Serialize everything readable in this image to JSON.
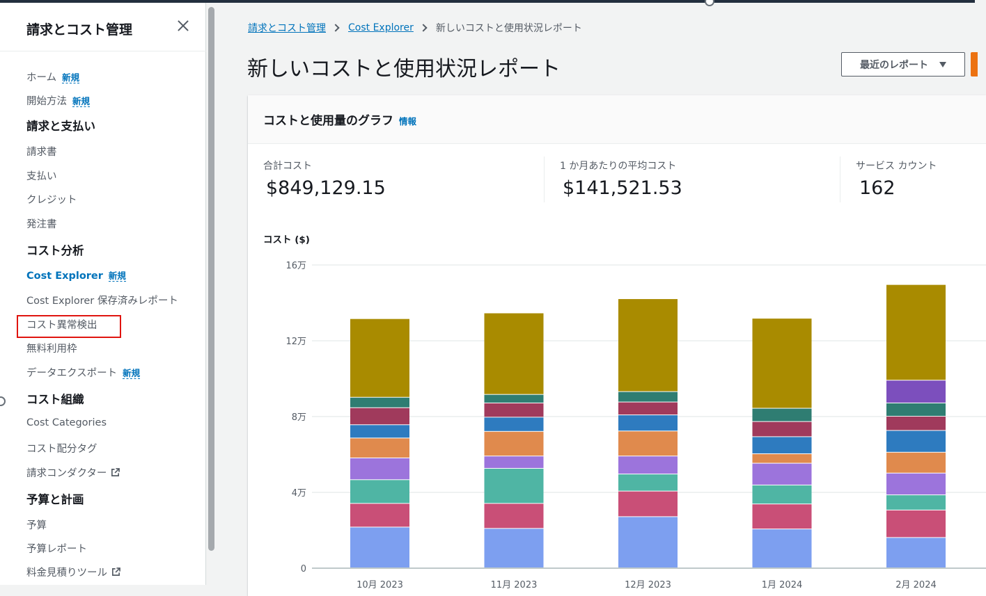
{
  "sidebar": {
    "title": "請求とコスト管理",
    "items": [
      {
        "label": "ホーム",
        "badge": "新規"
      },
      {
        "label": "開始方法",
        "badge": "新規"
      },
      {
        "label": "請求と支払い"
      },
      {
        "label": "請求書"
      },
      {
        "label": "支払い"
      },
      {
        "label": "クレジット"
      },
      {
        "label": "発注書"
      },
      {
        "label": "コスト分析"
      },
      {
        "label": "Cost Explorer",
        "badge": "新規"
      },
      {
        "label": "Cost Explorer 保存済みレポート"
      },
      {
        "label": "コスト異常検出"
      },
      {
        "label": "無料利用枠"
      },
      {
        "label": "データエクスポート",
        "badge": "新規"
      },
      {
        "label": "コスト組織"
      },
      {
        "label": "Cost Categories"
      },
      {
        "label": "コスト配分タグ"
      },
      {
        "label": "請求コンダクター"
      },
      {
        "label": "予算と計画"
      },
      {
        "label": "予算"
      },
      {
        "label": "予算レポート"
      },
      {
        "label": "料金見積りツール"
      }
    ]
  },
  "breadcrumb": {
    "items": [
      "請求とコスト管理",
      "Cost Explorer",
      "新しいコストと使用状況レポート"
    ]
  },
  "page": {
    "title": "新しいコストと使用状況レポート",
    "recent_reports_label": "最近のレポート"
  },
  "card": {
    "title": "コストと使用量のグラフ",
    "info_label": "情報",
    "metrics": [
      {
        "label": "合計コスト",
        "value": "$849,129.15"
      },
      {
        "label": "1 か月あたりの平均コスト",
        "value": "$141,521.53"
      },
      {
        "label": "サービス カウント",
        "value": "162"
      }
    ],
    "chart_ylabel": "コスト ($)"
  },
  "colors": {
    "accent": "#0073bb",
    "highlight_box": "#e0140f",
    "series": [
      "#7d9ff0",
      "#c94f77",
      "#4fb5a4",
      "#9c74dc",
      "#e08a4d",
      "#2e7bbf",
      "#a03a5c",
      "#2f7d72",
      "#7c4fbd",
      "#a98b00"
    ]
  },
  "chart_data": {
    "type": "bar",
    "stacked": true,
    "categories": [
      "10月 2023",
      "11月 2023",
      "12月 2023",
      "1月 2024",
      "2月 2024"
    ],
    "tick_labels": [
      "0",
      "4万",
      "8万",
      "12万",
      "16万"
    ],
    "ylim": [
      0,
      160000
    ],
    "grid": true,
    "series": [
      {
        "values": [
          21500,
          20800,
          27000,
          20500,
          16000
        ]
      },
      {
        "values": [
          12500,
          13200,
          13500,
          13200,
          14500
        ]
      },
      {
        "values": [
          12500,
          18500,
          9000,
          10000,
          8000
        ]
      },
      {
        "values": [
          11500,
          6500,
          9500,
          11500,
          11500
        ]
      },
      {
        "values": [
          10500,
          13000,
          13200,
          5000,
          11000
        ]
      },
      {
        "values": [
          7000,
          7500,
          8500,
          9000,
          11500
        ]
      },
      {
        "values": [
          9000,
          7500,
          6800,
          8000,
          7500
        ]
      },
      {
        "values": [
          5500,
          4500,
          5500,
          7000,
          7000
        ]
      },
      {
        "values": [
          0,
          0,
          0,
          0,
          12000
        ]
      },
      {
        "values": [
          41500,
          43000,
          49000,
          47500,
          50500
        ]
      }
    ]
  }
}
